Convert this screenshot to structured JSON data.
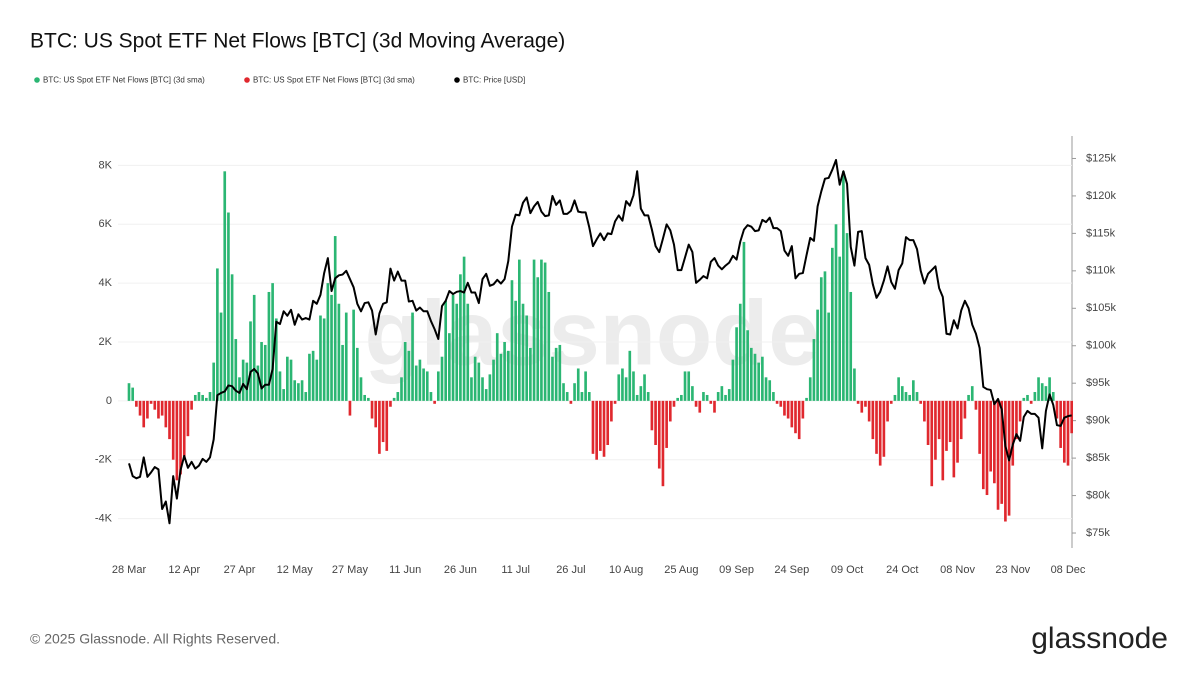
{
  "chart_data": {
    "type": "bar",
    "title": "BTC: US Spot ETF Net Flows [BTC] (3d Moving Average)",
    "copyright": "© 2025 Glassnode. All Rights Reserved.",
    "brand": "glassnode",
    "negative_legend": "BTC: US Spot ETF Net Flows [BTC] (3d sma)",
    "categories": [
      "28 Mar",
      null,
      null,
      null,
      null,
      null,
      null,
      null,
      null,
      null,
      null,
      null,
      null,
      null,
      null,
      "12 Apr",
      null,
      null,
      null,
      null,
      null,
      null,
      null,
      null,
      null,
      null,
      null,
      null,
      null,
      null,
      "27 Apr",
      null,
      null,
      null,
      null,
      null,
      null,
      null,
      null,
      null,
      null,
      null,
      null,
      null,
      null,
      "12 May",
      null,
      null,
      null,
      null,
      null,
      null,
      null,
      null,
      null,
      null,
      null,
      null,
      null,
      null,
      "27 May",
      null,
      null,
      null,
      null,
      null,
      null,
      null,
      null,
      null,
      null,
      null,
      null,
      null,
      null,
      "11 Jun",
      null,
      null,
      null,
      null,
      null,
      null,
      null,
      null,
      null,
      null,
      null,
      null,
      null,
      null,
      "26 Jun",
      null,
      null,
      null,
      null,
      null,
      null,
      null,
      null,
      null,
      null,
      null,
      null,
      null,
      null,
      "11 Jul",
      null,
      null,
      null,
      null,
      null,
      null,
      null,
      null,
      null,
      null,
      null,
      null,
      null,
      null,
      "26 Jul",
      null,
      null,
      null,
      null,
      null,
      null,
      null,
      null,
      null,
      null,
      null,
      null,
      null,
      null,
      "10 Aug",
      null,
      null,
      null,
      null,
      null,
      null,
      null,
      null,
      null,
      null,
      null,
      null,
      null,
      null,
      "25 Aug",
      null,
      null,
      null,
      null,
      null,
      null,
      null,
      null,
      null,
      null,
      null,
      null,
      null,
      null,
      "09 Sep",
      null,
      null,
      null,
      null,
      null,
      null,
      null,
      null,
      null,
      null,
      null,
      null,
      null,
      null,
      "24 Sep",
      null,
      null,
      null,
      null,
      null,
      null,
      null,
      null,
      null,
      null,
      null,
      null,
      null,
      null,
      "09 Oct",
      null,
      null,
      null,
      null,
      null,
      null,
      null,
      null,
      null,
      null,
      null,
      null,
      null,
      null,
      "24 Oct",
      null,
      null,
      null,
      null,
      null,
      null,
      null,
      null,
      null,
      null,
      null,
      null,
      null,
      null,
      "08 Nov",
      null,
      null,
      null,
      null,
      null,
      null,
      null,
      null,
      null,
      null,
      null,
      null,
      null,
      null,
      "23 Nov",
      null,
      null,
      null,
      null,
      null,
      null,
      null,
      null,
      null,
      null,
      null,
      null,
      null,
      null,
      "08 Dec",
      null
    ],
    "series": [
      {
        "name": "BTC: US Spot ETF Net Flows [BTC] (3d sma)",
        "type": "bar",
        "color": "#2bb673",
        "negative_color": "#e0282e",
        "values": [
          600,
          450,
          -200,
          -500,
          -900,
          -600,
          -100,
          -300,
          -600,
          -500,
          -900,
          -1300,
          -2000,
          -2700,
          -2500,
          -2000,
          -1200,
          -300,
          200,
          300,
          200,
          100,
          300,
          1300,
          4500,
          3000,
          7800,
          6400,
          4300,
          2100,
          800,
          1400,
          1300,
          2700,
          3600,
          1200,
          2000,
          1900,
          3700,
          4000,
          2800,
          1000,
          400,
          1500,
          1400,
          700,
          600,
          700,
          300,
          1600,
          1700,
          1400,
          2900,
          2800,
          4000,
          3600,
          5600,
          3300,
          1900,
          3000,
          -500,
          3100,
          1800,
          800,
          200,
          100,
          -600,
          -900,
          -1800,
          -1400,
          -1700,
          -200,
          100,
          300,
          800,
          2000,
          1700,
          3000,
          1200,
          1400,
          1100,
          1000,
          300,
          -100,
          1000,
          1500,
          3400,
          2300,
          3600,
          3300,
          4300,
          4900,
          3300,
          800,
          1500,
          1300,
          800,
          400,
          900,
          1400,
          2300,
          1600,
          2000,
          1700,
          4100,
          3400,
          4800,
          3300,
          2900,
          1800,
          4800,
          4200,
          4800,
          4700,
          3700,
          1500,
          1800,
          1900,
          600,
          300,
          -100,
          600,
          1100,
          300,
          1000,
          300,
          -1800,
          -2000,
          -1700,
          -1900,
          -1500,
          -700,
          -100,
          900,
          1100,
          800,
          1700,
          1000,
          200,
          500,
          900,
          300,
          -1000,
          -1500,
          -2300,
          -2900,
          -1600,
          -700,
          -200,
          100,
          200,
          1000,
          1000,
          500,
          -200,
          -400,
          300,
          200,
          -100,
          -400,
          300,
          500,
          200,
          400,
          1400,
          2500,
          3300,
          5400,
          2400,
          1800,
          1600,
          1300,
          1500,
          800,
          700,
          300,
          -100,
          -200,
          -500,
          -600,
          -900,
          -1100,
          -1300,
          -600,
          100,
          800,
          2100,
          3100,
          4200,
          4400,
          3000,
          5200,
          6000,
          4900,
          7800,
          5700,
          3700,
          1100,
          -100,
          -400,
          -200,
          -700,
          -1300,
          -1800,
          -2200,
          -1900,
          -700,
          -100,
          200,
          800,
          500,
          300,
          200,
          700,
          300,
          -100,
          -700,
          -1500,
          -2900,
          -2000,
          -1300,
          -2700,
          -1700,
          -1400,
          -2600,
          -2100,
          -1300,
          -600,
          200,
          500,
          -300,
          -1800,
          -3000,
          -3200,
          -2400,
          -2800,
          -3700,
          -3500,
          -4100,
          -3900,
          -2200,
          -1300,
          -700,
          100,
          200,
          -100,
          300,
          800,
          600,
          500,
          800,
          300,
          -600,
          -1600,
          -2100,
          -2200,
          -1100
        ]
      },
      {
        "name": "BTC: Price [USD]",
        "type": "line",
        "axis": "y2",
        "color": "#000000",
        "values": [
          84300,
          82600,
          82300,
          82500,
          85100,
          82500,
          83100,
          83800,
          83500,
          78200,
          79200,
          76300,
          82600,
          79600,
          83400,
          85300,
          83700,
          84500,
          83600,
          84000,
          84900,
          84500,
          85100,
          87500,
          93400,
          93700,
          93900,
          94700,
          94600,
          94000,
          93700,
          94900,
          94200,
          96500,
          96900,
          96300,
          94300,
          94800,
          94800,
          96900,
          103200,
          102900,
          104600,
          104000,
          104800,
          102800,
          104200,
          103500,
          103700,
          103500,
          106000,
          105600,
          106800,
          109700,
          111700,
          107300,
          109000,
          109400,
          109500,
          110000,
          108900,
          107800,
          105600,
          104600,
          105700,
          105800,
          104700,
          101500,
          104300,
          105600,
          105800,
          110300,
          108700,
          109900,
          108700,
          108700,
          105900,
          106000,
          104700,
          105100,
          104600,
          104600,
          103300,
          102200,
          100900,
          105300,
          106000,
          107300,
          106900,
          107200,
          107300,
          107100,
          108400,
          107100,
          107100,
          105700,
          108900,
          109600,
          108000,
          108200,
          108800,
          108300,
          108900,
          111300,
          115900,
          117500,
          117400,
          119100,
          119800,
          117700,
          118600,
          119200,
          117900,
          117300,
          117400,
          120000,
          118800,
          119400,
          117600,
          117600,
          118000,
          119400,
          117900,
          117800,
          117800,
          115800,
          113300,
          114200,
          115000,
          114100,
          115000,
          114900,
          116600,
          117400,
          116700,
          119300,
          118700,
          120100,
          123300,
          118300,
          117400,
          117400,
          115500,
          113300,
          112500,
          114300,
          116200,
          115400,
          113500,
          110100,
          110100,
          111800,
          113500,
          112500,
          108400,
          108800,
          109300,
          109000,
          111200,
          111700,
          110700,
          110200,
          110700,
          111100,
          112000,
          111500,
          113900,
          115500,
          116100,
          115900,
          115300,
          115400,
          116800,
          116500,
          117100,
          115700,
          115700,
          115300,
          112700,
          112000,
          113300,
          109000,
          109600,
          109700,
          112100,
          114400,
          114000,
          118600,
          120600,
          122300,
          122400,
          123500,
          124800,
          121500,
          123300,
          121600,
          113200,
          110700,
          115200,
          115300,
          111700,
          110800,
          108200,
          106400,
          107200,
          108700,
          110600,
          108500,
          107600,
          110100,
          111000,
          114500,
          114100,
          114100,
          112900,
          110000,
          108300,
          109600,
          110100,
          110600,
          107700,
          106500,
          101600,
          101500,
          103400,
          102300,
          104700,
          106000,
          105000,
          102800,
          101600,
          99700,
          94500,
          94200,
          94100,
          92200,
          92900,
          91500,
          86600,
          84700,
          86800,
          88200,
          87300,
          90500,
          91300,
          90900,
          90900,
          90400,
          86300,
          91300,
          93500,
          92100,
          89400,
          89300,
          90400,
          90600,
          90700
        ]
      }
    ],
    "ylim": [
      -5000,
      9000
    ],
    "yticks": [
      {
        "value": -4000,
        "label": "-4K"
      },
      {
        "value": -2000,
        "label": "-2K"
      },
      0,
      {
        "value": 2000,
        "label": "2K"
      },
      {
        "value": 4000,
        "label": "4K"
      },
      {
        "value": 6000,
        "label": "6K"
      },
      {
        "value": 8000,
        "label": "8K"
      }
    ],
    "y2lim": [
      73000,
      128000
    ],
    "y2ticks": [
      {
        "value": 75000,
        "label": "$75k"
      },
      {
        "value": 80000,
        "label": "$80k"
      },
      {
        "value": 85000,
        "label": "$85k"
      },
      {
        "value": 90000,
        "label": "$90k"
      },
      {
        "value": 95000,
        "label": "$95k"
      },
      {
        "value": 100000,
        "label": "$100k"
      },
      {
        "value": 105000,
        "label": "$105k"
      },
      {
        "value": 110000,
        "label": "$110k"
      },
      {
        "value": 115000,
        "label": "$115k"
      },
      {
        "value": 120000,
        "label": "$120k"
      },
      {
        "value": 125000,
        "label": "$125k"
      }
    ],
    "grid": true
  }
}
